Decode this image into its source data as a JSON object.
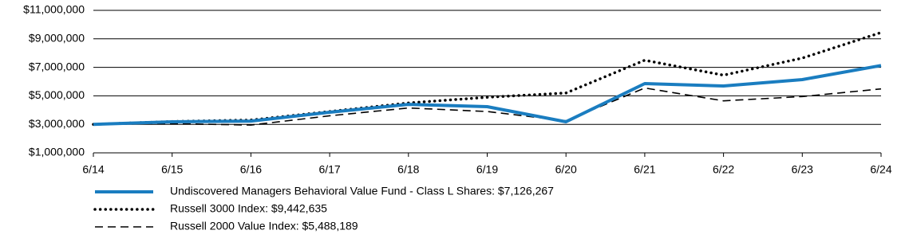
{
  "chart_data": {
    "type": "line",
    "categories": [
      "6/14",
      "6/15",
      "6/16",
      "6/17",
      "6/18",
      "6/19",
      "6/20",
      "6/21",
      "6/22",
      "6/23",
      "6/24"
    ],
    "ylim": [
      1000000,
      11000000
    ],
    "yticks": [
      {
        "value": 1000000,
        "label": "$1,000,000"
      },
      {
        "value": 3000000,
        "label": "$3,000,000"
      },
      {
        "value": 5000000,
        "label": "$5,000,000"
      },
      {
        "value": 7000000,
        "label": "$7,000,000"
      },
      {
        "value": 9000000,
        "label": "$9,000,000"
      },
      {
        "value": 11000000,
        "label": "$11,000,000"
      }
    ],
    "grid": true,
    "series": [
      {
        "name": "Undiscovered Managers Behavioral Value Fund - Class L Shares: $7,126,267",
        "color": "#1a7dc0",
        "dash": "solid",
        "values": [
          3000000,
          3180000,
          3230000,
          3850000,
          4400000,
          4240000,
          3180000,
          5860000,
          5690000,
          6140000,
          7126267
        ]
      },
      {
        "name": "Russell 3000 Index: $9,442,635",
        "color": "#000000",
        "dash": "dotted",
        "values": [
          3000000,
          3200000,
          3300000,
          3900000,
          4500000,
          4900000,
          5200000,
          7500000,
          6450000,
          7650000,
          9442635
        ]
      },
      {
        "name": "Russell 2000 Value Index: $5,488,189",
        "color": "#000000",
        "dash": "dashed",
        "values": [
          3000000,
          3050000,
          2950000,
          3600000,
          4150000,
          3900000,
          3250000,
          5550000,
          4650000,
          4950000,
          5488189
        ]
      }
    ]
  }
}
